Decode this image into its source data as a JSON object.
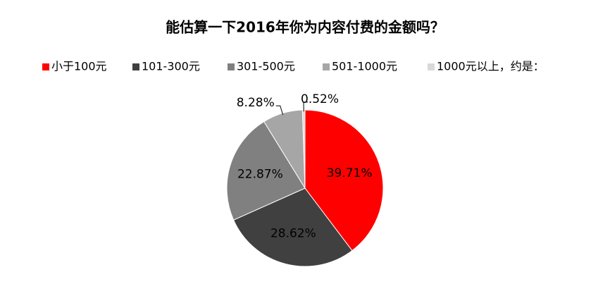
{
  "chart_data": {
    "type": "pie",
    "title": "能估算一下2016年你为内容付费的金额吗？",
    "categories": [
      "小于100元",
      "101-300元",
      "301-500元",
      "501-1000元",
      "1000元以上，约是："
    ],
    "values": [
      39.71,
      28.62,
      22.87,
      8.28,
      0.52
    ],
    "value_labels": [
      "39.71%",
      "28.62%",
      "22.87%",
      "8.28%",
      "0.52%"
    ],
    "colors": [
      "#ff0000",
      "#404040",
      "#808080",
      "#a6a6a6",
      "#d9d9d9"
    ],
    "legend": "top"
  }
}
